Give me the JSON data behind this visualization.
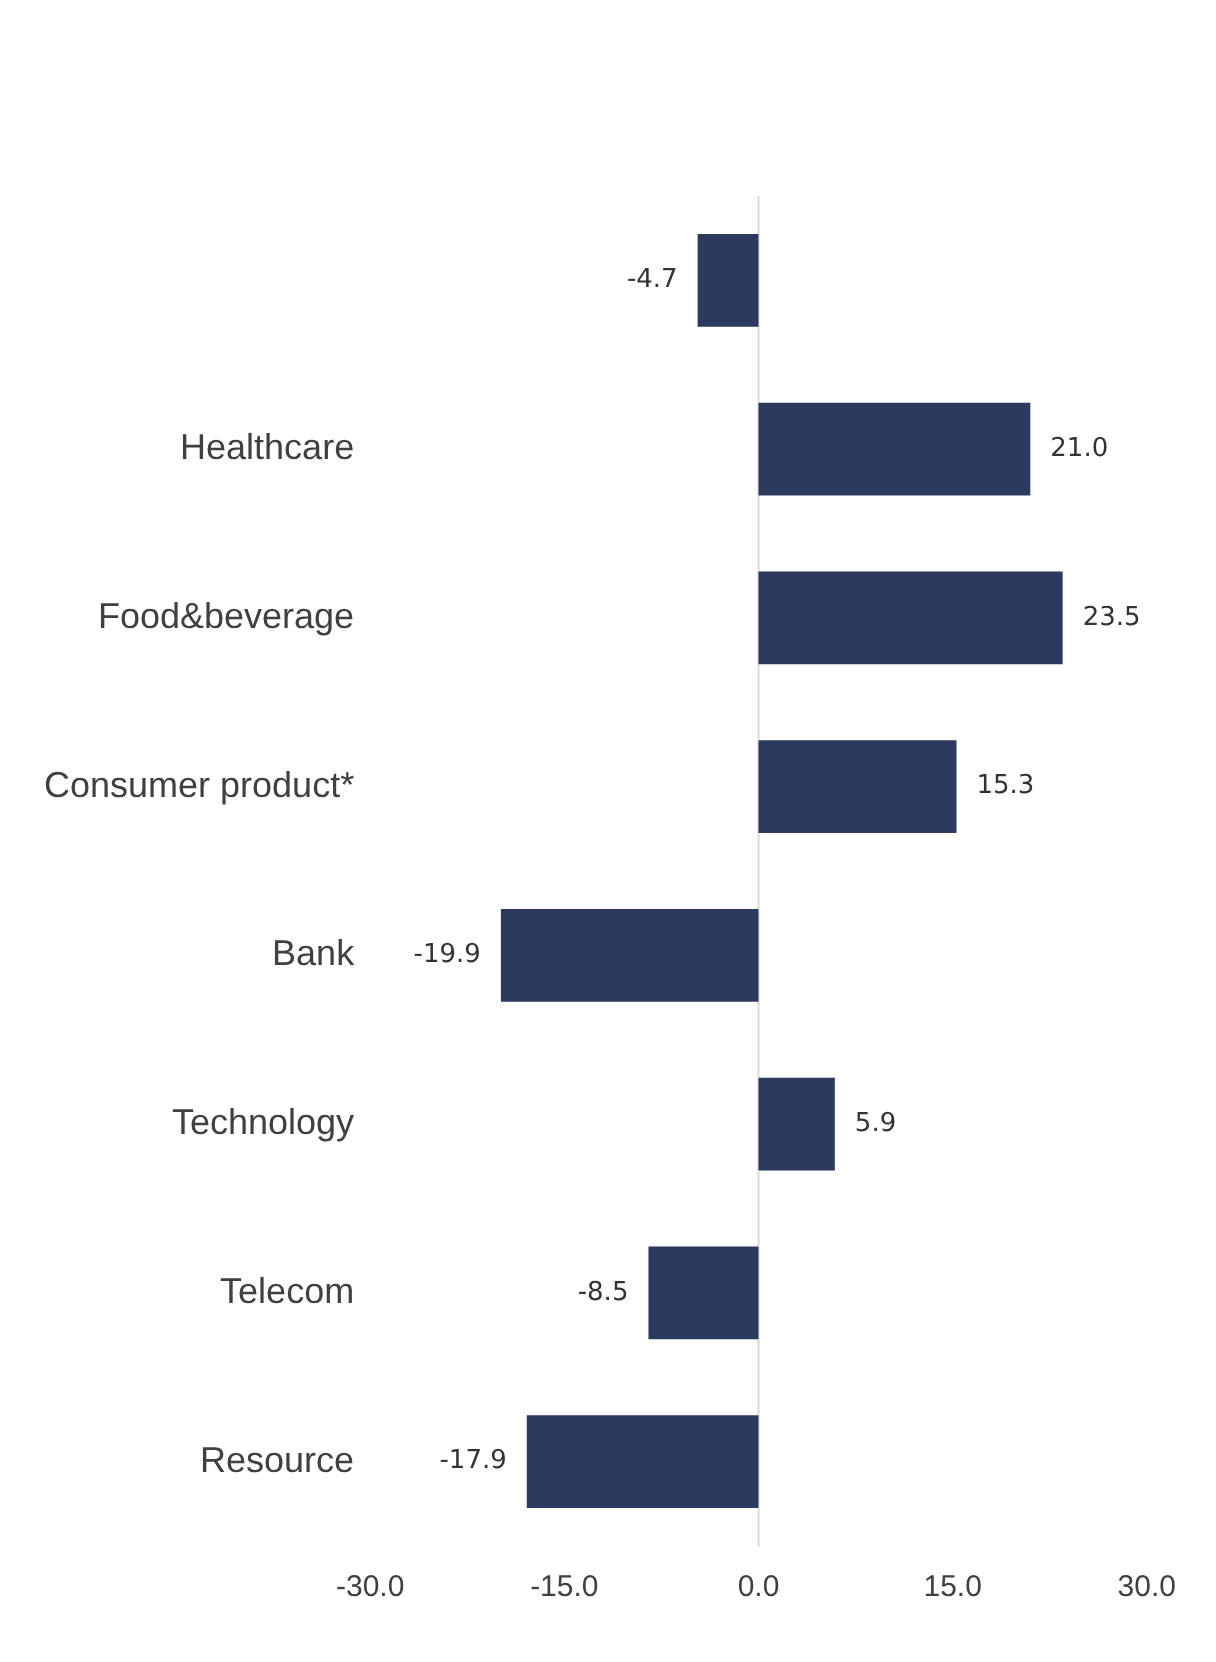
{
  "chart_data": {
    "type": "bar",
    "orientation": "horizontal",
    "categories": [
      null,
      "Healthcare",
      "Food&beverage",
      "Consumer product*",
      "Bank",
      "Technology",
      "Telecom",
      "Resource"
    ],
    "values": [
      -4.7,
      21.0,
      23.5,
      15.3,
      -19.9,
      5.9,
      -8.5,
      -17.9
    ],
    "value_labels": [
      "-4.7",
      "21.0",
      "23.5",
      "15.3",
      "-19.9",
      "5.9",
      "-8.5",
      "-17.9"
    ],
    "color": "#2b3a5e",
    "xlim": [
      -30,
      30
    ],
    "xticks": [
      {
        "value": -30,
        "label": "-30.0"
      },
      {
        "value": -15,
        "label": "-15.0"
      },
      {
        "value": 0,
        "label": "0.0"
      },
      {
        "value": 15,
        "label": "15.0"
      },
      {
        "value": 30,
        "label": "30.0"
      }
    ],
    "ref_lines": [
      {
        "axis": "x",
        "value": 0,
        "color": "#d9d9d9"
      }
    ],
    "legend": false
  }
}
